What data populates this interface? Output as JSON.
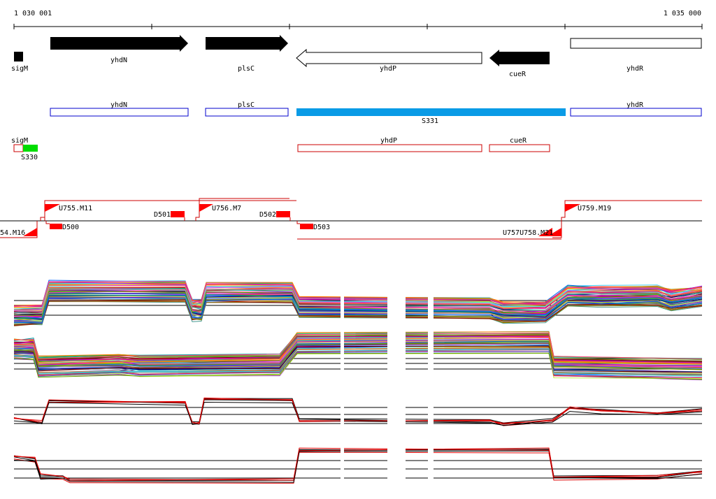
{
  "ruler": {
    "start_label": "1 030 001",
    "end_label": "1 035 000"
  },
  "genes": {
    "sigM": "sigM",
    "yhdN": "yhdN",
    "plsC": "plsC",
    "yhdP": "yhdP",
    "cueR": "cueR",
    "yhdR": "yhdR"
  },
  "transcripts": {
    "yhdN": "yhdN",
    "plsC": "plsC",
    "yhdR": "yhdR",
    "s331": "S331"
  },
  "features": {
    "sigM": "sigM",
    "s330": "S330",
    "yhdP": "yhdP",
    "cueR": "cueR"
  },
  "regulators": {
    "u755": "U755.M11",
    "u756": "U756.M7",
    "u759": "U759.M19",
    "m16": "54.M16",
    "overlap": "U757U758.M21",
    "d500": "D500",
    "d501": "D501",
    "d502": "D502",
    "d503": "D503"
  },
  "colors": {
    "gene_fill": "#000000",
    "transcript_outline": "#0000cc",
    "highlight_segment": "#0a9be6",
    "feature_outline": "#cc0000",
    "marker_red": "#ff0000",
    "marker_green": "#00dd00",
    "profile_alt": "#e00000"
  }
}
